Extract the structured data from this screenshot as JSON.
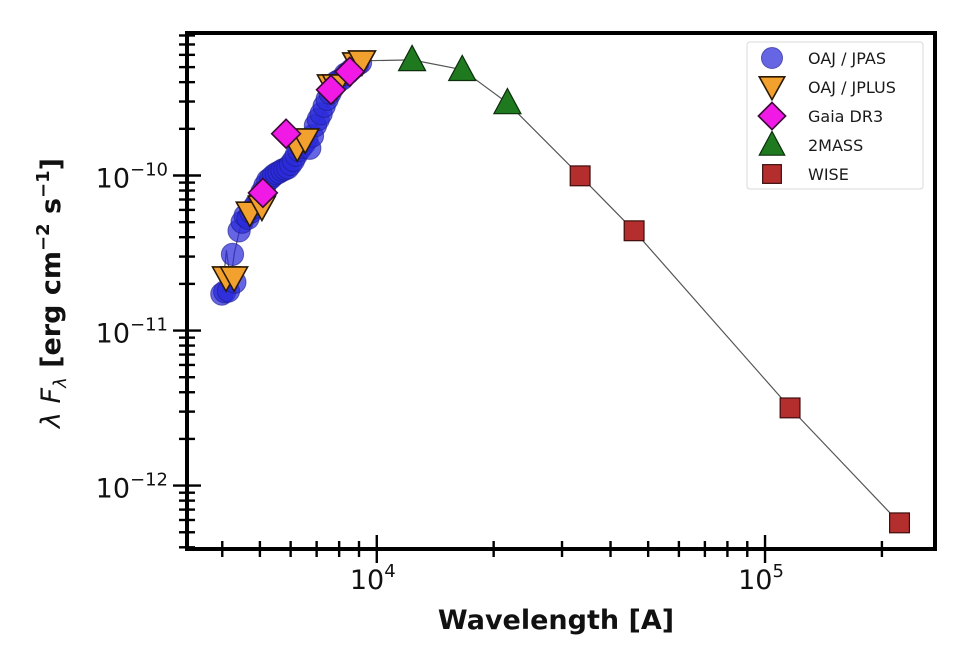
{
  "chart_data": {
    "type": "scatter",
    "title": "",
    "xlabel": "Wavelength [A]",
    "ylabel": {
      "prefix": "λ F",
      "subscript": "λ",
      "units_parts": [
        "[erg cm",
        "−2",
        " s",
        "−1",
        "]"
      ]
    },
    "xscale": "log",
    "yscale": "log",
    "xlim": [
      3245,
      274000
    ],
    "ylim": [
      3.9e-13,
      8.3e-10
    ],
    "xticks": [
      {
        "value": 10000,
        "base": "10",
        "exp": "4"
      },
      {
        "value": 100000,
        "base": "10",
        "exp": "5"
      }
    ],
    "yticks": [
      {
        "value": 1e-10,
        "base": "10",
        "exp": "−10"
      },
      {
        "value": 1e-11,
        "base": "10",
        "exp": "−11"
      },
      {
        "value": 1e-12,
        "base": "10",
        "exp": "−12"
      }
    ],
    "grid": false,
    "legend_position": "top-right",
    "model_line": {
      "color": "#555555",
      "x": [
        4000,
        4100,
        4200,
        4300,
        4500,
        4700,
        5000,
        5300,
        5600,
        6000,
        6400,
        6800,
        7200,
        7600,
        8000,
        8500,
        9000,
        9500,
        12330,
        16600,
        21700,
        33400,
        46000,
        116000,
        222000
      ],
      "y": [
        1.75e-11,
        3.3e-11,
        2.1e-11,
        3.2e-11,
        5.2e-11,
        5.9e-11,
        7.4e-11,
        9.5e-11,
        1.08e-10,
        1.2e-10,
        1.55e-10,
        1.9e-10,
        2.4e-10,
        3.1e-10,
        3.9e-10,
        4.6e-10,
        5.2e-10,
        5.5e-10,
        5.57e-10,
        4.81e-10,
        2.94e-10,
        9.95e-11,
        4.4e-11,
        3.17e-12,
        5.75e-13
      ]
    },
    "series": [
      {
        "name": "OAJ / JPAS",
        "marker": "circle",
        "color": "#2b2bd9",
        "edge": "#1a1a8a",
        "x": [
          3990,
          4060,
          4150,
          4250,
          4310,
          4420,
          4500,
          4580,
          4660,
          4740,
          4820,
          4900,
          4980,
          5060,
          5150,
          5240,
          5330,
          5420,
          5510,
          5600,
          5700,
          5800,
          5900,
          6000,
          6100,
          6200,
          6300,
          6400,
          6500,
          6610,
          6720,
          6830,
          6950,
          7070,
          7190,
          7320,
          7450,
          7580,
          7720,
          7860,
          8000,
          8150,
          8300,
          8450,
          8600,
          8760,
          8920,
          9080
        ],
        "y": [
          1.72e-11,
          1.78e-11,
          1.8e-11,
          3.1e-11,
          2.05e-11,
          4.4e-11,
          5e-11,
          5.5e-11,
          5.3e-11,
          5.8e-11,
          6.2e-11,
          6.6e-11,
          7e-11,
          7.8e-11,
          8.6e-11,
          9.3e-11,
          9.6e-11,
          1e-10,
          1.03e-10,
          1.05e-10,
          1.08e-10,
          1.1e-10,
          1.12e-10,
          1.18e-10,
          1.25e-10,
          1.35e-10,
          1.45e-10,
          1.52e-10,
          1.6e-10,
          1.7e-10,
          1.5e-10,
          1.8e-10,
          2.1e-10,
          2.3e-10,
          2.5e-10,
          2.8e-10,
          3.1e-10,
          3.4e-10,
          3.7e-10,
          4e-10,
          4.1e-10,
          4.2e-10,
          4.5e-10,
          4.6e-10,
          4.8e-10,
          5e-10,
          5.2e-10,
          5.35e-10
        ]
      },
      {
        "name": "OAJ / JPLUS",
        "marker": "triangle-down",
        "color": "#f2a12e",
        "edge": "#2a1a05",
        "x": [
          4090,
          4290,
          4710,
          5060,
          6240,
          6540,
          7620,
          7860,
          8850,
          9160
        ],
        "y": [
          2.19e-11,
          2.19e-11,
          5.73e-11,
          6.27e-11,
          1.51e-10,
          1.7e-10,
          3.79e-10,
          3.79e-10,
          5.26e-10,
          5.42e-10
        ]
      },
      {
        "name": "Gaia DR3",
        "marker": "diamond",
        "color": "#f019e6",
        "edge": "#3a0a36",
        "x": [
          5090,
          5840,
          7620,
          8520
        ],
        "y": [
          7.73e-11,
          1.86e-10,
          3.57e-10,
          4.67e-10
        ]
      },
      {
        "name": "2MASS",
        "marker": "triangle-up",
        "color": "#1f7a1f",
        "edge": "#0c2e0c",
        "x": [
          12330,
          16600,
          21700
        ],
        "y": [
          5.57e-10,
          4.81e-10,
          2.94e-10
        ]
      },
      {
        "name": "WISE",
        "marker": "square",
        "color": "#b52e2e",
        "edge": "#3d0d0d",
        "x": [
          33400,
          46000,
          116000,
          222000
        ],
        "y": [
          9.95e-11,
          4.4e-11,
          3.17e-12,
          5.75e-13
        ]
      }
    ]
  }
}
